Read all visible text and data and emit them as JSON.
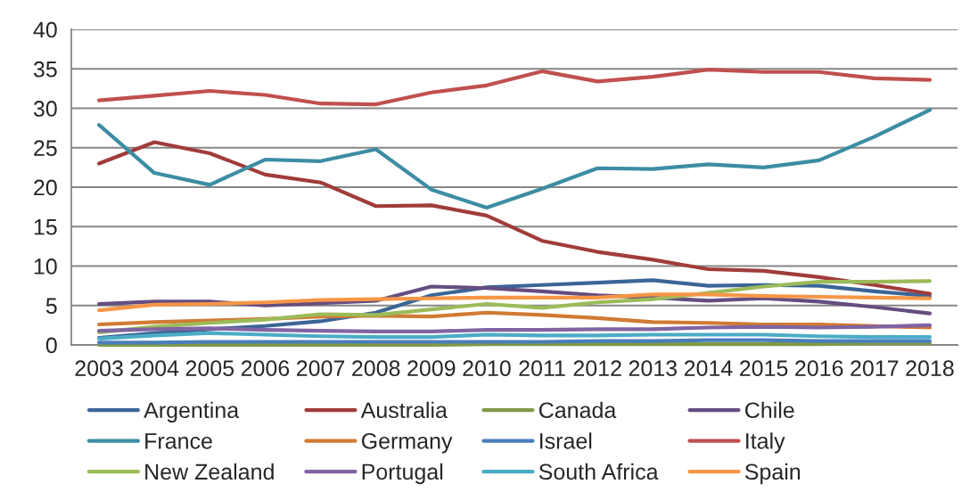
{
  "chart_data": {
    "type": "line",
    "categories": [
      "2003",
      "2004",
      "2005",
      "2006",
      "2007",
      "2008",
      "2009",
      "2010",
      "2011",
      "2012",
      "2013",
      "2014",
      "2015",
      "2016",
      "2017",
      "2018"
    ],
    "ylim": [
      0,
      40
    ],
    "yticks": [
      0,
      5,
      10,
      15,
      20,
      25,
      30,
      35,
      40
    ],
    "grid": "y",
    "legend": "bottom",
    "line_style": "solid",
    "series": [
      {
        "name": "Argentina",
        "color": "#3b6597",
        "values": [
          0.9,
          1.5,
          2.0,
          2.4,
          3.0,
          4.1,
          6.3,
          7.3,
          7.6,
          7.9,
          8.2,
          7.5,
          7.6,
          7.5,
          6.8,
          6.2
        ]
      },
      {
        "name": "Australia",
        "color": "#a03c3a",
        "values": [
          23.0,
          25.7,
          24.3,
          21.6,
          20.6,
          17.6,
          17.7,
          16.4,
          13.2,
          11.8,
          10.8,
          9.6,
          9.4,
          8.6,
          7.6,
          6.5
        ]
      },
      {
        "name": "Canada",
        "color": "#7f9a47",
        "values": [
          0.0,
          0.0,
          0.0,
          0.0,
          0.0,
          0.0,
          0.0,
          0.1,
          0.1,
          0.1,
          0.1,
          0.1,
          0.1,
          0.1,
          0.2,
          0.2
        ]
      },
      {
        "name": "Chile",
        "color": "#654d80",
        "values": [
          5.2,
          5.5,
          5.5,
          5.0,
          5.3,
          5.6,
          7.4,
          7.2,
          6.8,
          6.3,
          6.0,
          5.6,
          5.9,
          5.5,
          4.8,
          4.0
        ]
      },
      {
        "name": "France",
        "color": "#3c8da3",
        "values": [
          27.9,
          21.8,
          20.3,
          23.5,
          23.3,
          24.8,
          19.7,
          17.4,
          19.8,
          22.4,
          22.3,
          22.9,
          22.5,
          23.4,
          26.4,
          29.8
        ]
      },
      {
        "name": "Germany",
        "color": "#d07a33",
        "values": [
          2.6,
          2.9,
          3.1,
          3.3,
          3.6,
          3.7,
          3.6,
          4.1,
          3.8,
          3.4,
          2.9,
          2.8,
          2.6,
          2.6,
          2.4,
          2.2
        ]
      },
      {
        "name": "Israel",
        "color": "#4a7ebb",
        "values": [
          0.3,
          0.3,
          0.4,
          0.4,
          0.4,
          0.4,
          0.4,
          0.4,
          0.4,
          0.5,
          0.5,
          0.6,
          0.6,
          0.5,
          0.5,
          0.5
        ]
      },
      {
        "name": "Italy",
        "color": "#c0504d",
        "values": [
          31.0,
          31.6,
          32.2,
          31.7,
          30.6,
          30.5,
          32.0,
          32.9,
          34.7,
          33.4,
          34.0,
          34.9,
          34.6,
          34.6,
          33.8,
          33.6
        ]
      },
      {
        "name": "New Zealand",
        "color": "#9bbb59",
        "values": [
          1.6,
          2.3,
          2.8,
          3.2,
          3.9,
          3.8,
          4.5,
          5.2,
          4.7,
          5.4,
          5.8,
          6.6,
          7.4,
          8.0,
          8.0,
          8.1
        ]
      },
      {
        "name": "Portugal",
        "color": "#8064a2",
        "values": [
          1.8,
          2.0,
          2.1,
          1.9,
          1.8,
          1.7,
          1.7,
          1.9,
          1.9,
          2.0,
          2.0,
          2.2,
          2.3,
          2.2,
          2.3,
          2.5
        ]
      },
      {
        "name": "South Africa",
        "color": "#4bacc6",
        "values": [
          0.8,
          1.2,
          1.5,
          1.3,
          1.1,
          1.0,
          1.0,
          1.3,
          1.2,
          1.2,
          1.3,
          1.3,
          1.3,
          1.1,
          1.0,
          1.0
        ]
      },
      {
        "name": "Spain",
        "color": "#f79646",
        "values": [
          4.4,
          5.1,
          5.2,
          5.4,
          5.7,
          5.8,
          5.9,
          6.0,
          6.0,
          6.0,
          6.4,
          6.4,
          6.2,
          6.1,
          6.0,
          5.9
        ]
      }
    ]
  }
}
